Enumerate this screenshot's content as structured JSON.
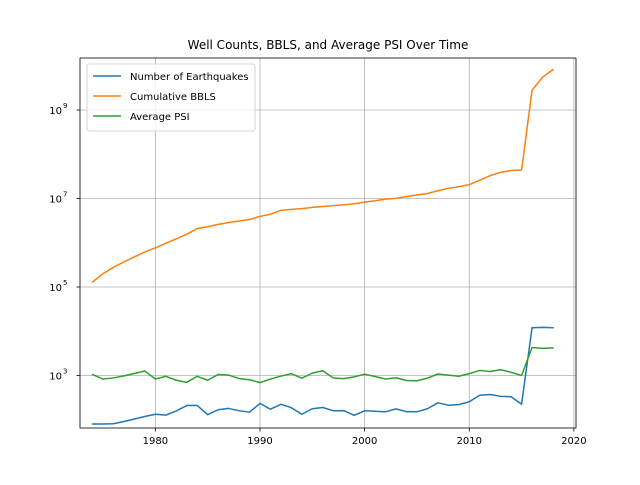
{
  "chart_data": {
    "type": "line",
    "title": "Well Counts, BBLS, and Average PSI Over Time",
    "xlabel": "",
    "ylabel": "",
    "yscale": "log",
    "xlim": [
      1972.8,
      2020.2
    ],
    "ylim": [
      65,
      15000000000
    ],
    "x_ticks": [
      1980,
      1990,
      2000,
      2010,
      2020
    ],
    "y_ticks": [
      {
        "value": 1000,
        "base": "10",
        "exp": "3"
      },
      {
        "value": 100000,
        "base": "10",
        "exp": "5"
      },
      {
        "value": 10000000,
        "base": "10",
        "exp": "7"
      },
      {
        "value": 1000000000,
        "base": "10",
        "exp": "9"
      }
    ],
    "grid": true,
    "legend_position": "upper-left",
    "x": [
      1974,
      1975,
      1976,
      1977,
      1978,
      1979,
      1980,
      1981,
      1982,
      1983,
      1984,
      1985,
      1986,
      1987,
      1988,
      1989,
      1990,
      1991,
      1992,
      1993,
      1994,
      1995,
      1996,
      1997,
      1998,
      1999,
      2000,
      2001,
      2002,
      2003,
      2004,
      2005,
      2006,
      2007,
      2008,
      2009,
      2010,
      2011,
      2012,
      2013,
      2014,
      2015,
      2016,
      2017,
      2018
    ],
    "series": [
      {
        "name": "Number of Earthquakes",
        "color": "#1f77b4",
        "values": [
          80,
          80,
          81,
          91,
          104,
          118,
          133,
          127,
          158,
          209,
          211,
          130,
          168,
          180,
          160,
          148,
          234,
          173,
          223,
          187,
          133,
          177,
          189,
          160,
          161,
          126,
          159,
          155,
          151,
          176,
          152,
          151,
          177,
          241,
          213,
          220,
          255,
          358,
          371,
          338,
          330,
          224,
          12000,
          12200,
          12000
        ]
      },
      {
        "name": "Cumulative BBLS",
        "color": "#ff7f0e",
        "values": [
          130000,
          200000,
          280000,
          370000,
          480000,
          620000,
          770000,
          970000,
          1230000,
          1550000,
          2100000,
          2300000,
          2600000,
          2850000,
          3100000,
          3350000,
          3950000,
          4400000,
          5400000,
          5700000,
          5900000,
          6300000,
          6600000,
          6900000,
          7200000,
          7600000,
          8300000,
          8900000,
          9700000,
          10100000,
          11100000,
          12000000,
          13000000,
          15000000,
          17000000,
          18500000,
          20500000,
          26000000,
          33000000,
          39000000,
          43000000,
          44000000,
          2800000000,
          5500000000,
          8200000000
        ]
      },
      {
        "name": "Average PSI",
        "color": "#2ca02c",
        "values": [
          1050,
          830,
          880,
          980,
          1110,
          1260,
          830,
          960,
          780,
          700,
          960,
          780,
          1050,
          1020,
          850,
          800,
          690,
          830,
          970,
          1100,
          870,
          1130,
          1280,
          880,
          850,
          930,
          1070,
          950,
          830,
          890,
          770,
          760,
          870,
          1080,
          1020,
          960,
          1100,
          1300,
          1230,
          1350,
          1180,
          1000,
          4300,
          4100,
          4200
        ]
      }
    ]
  }
}
